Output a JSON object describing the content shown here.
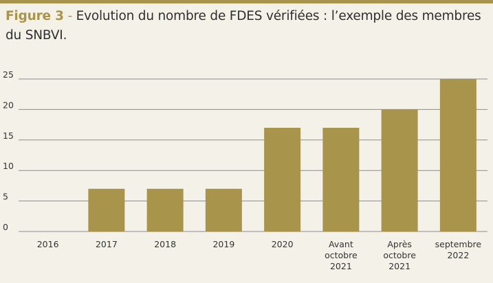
{
  "caption": {
    "figure_label": "Figure 3",
    "separator": "-",
    "text": "Evolution du nombre de FDES vérifiées : l’exemple des membres du SNBVI."
  },
  "colors": {
    "accent": "#a8954b",
    "background": "#f4f1e8",
    "grid": "#8c8c8c",
    "text": "#2f2f2f"
  },
  "chart_data": {
    "type": "bar",
    "categories": [
      "2016",
      "2017",
      "2018",
      "2019",
      "2020",
      "Avant octobre 2021",
      "Après octobre 2021",
      "septembre 2022"
    ],
    "category_lines": [
      [
        "2016"
      ],
      [
        "2017"
      ],
      [
        "2018"
      ],
      [
        "2019"
      ],
      [
        "2020"
      ],
      [
        "Avant",
        "octobre",
        "2021"
      ],
      [
        "Après",
        "octobre",
        "2021"
      ],
      [
        "septembre",
        "2022"
      ]
    ],
    "values": [
      0,
      7,
      7,
      7,
      17,
      17,
      20,
      25
    ],
    "ylim": [
      0,
      25
    ],
    "yticks": [
      0,
      5,
      10,
      15,
      20,
      25
    ],
    "grid": true,
    "legend": "none",
    "bar_color": "#a8954b",
    "title": "",
    "xlabel": "",
    "ylabel": ""
  }
}
